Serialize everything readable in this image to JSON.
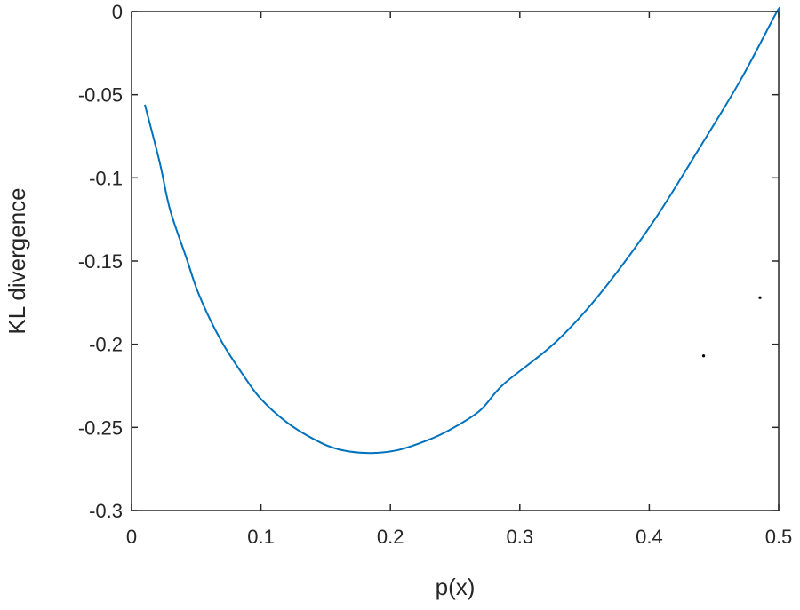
{
  "chart_data": {
    "type": "line",
    "title": "",
    "xlabel": "p(x)",
    "ylabel": "KL divergence",
    "xlim": [
      0,
      0.5
    ],
    "ylim": [
      -0.3,
      0
    ],
    "xticks": [
      "0",
      "0.1",
      "0.2",
      "0.3",
      "0.4",
      "0.5"
    ],
    "xtick_values": [
      0,
      0.1,
      0.2,
      0.3,
      0.4,
      0.5
    ],
    "yticks": [
      "0",
      "-0.05",
      "-0.1",
      "-0.15",
      "-0.2",
      "-0.25",
      "-0.3"
    ],
    "ytick_values": [
      0,
      -0.05,
      -0.1,
      -0.15,
      -0.2,
      -0.25,
      -0.3
    ],
    "grid": false,
    "series": [
      {
        "color": "#0072BD",
        "x": [
          0.0103,
          0.0217,
          0.0297,
          0.0423,
          0.0503,
          0.0606,
          0.072,
          0.0858,
          0.0995,
          0.12,
          0.1407,
          0.159,
          0.182,
          0.2048,
          0.2277,
          0.246,
          0.269,
          0.2875,
          0.3265,
          0.3608,
          0.402,
          0.4386,
          0.4707,
          0.498,
          0.5
        ],
        "y": [
          -0.056,
          -0.0905,
          -0.119,
          -0.148,
          -0.1667,
          -0.185,
          -0.2016,
          -0.218,
          -0.2325,
          -0.247,
          -0.257,
          -0.263,
          -0.2654,
          -0.2638,
          -0.258,
          -0.2514,
          -0.24,
          -0.224,
          -0.1996,
          -0.1708,
          -0.1276,
          -0.0823,
          -0.041,
          -0.001,
          0
        ]
      }
    ],
    "stray_points": {
      "color": "#000000",
      "x": [
        0.4856,
        0.442
      ],
      "y": [
        -0.172,
        -0.207
      ]
    }
  }
}
